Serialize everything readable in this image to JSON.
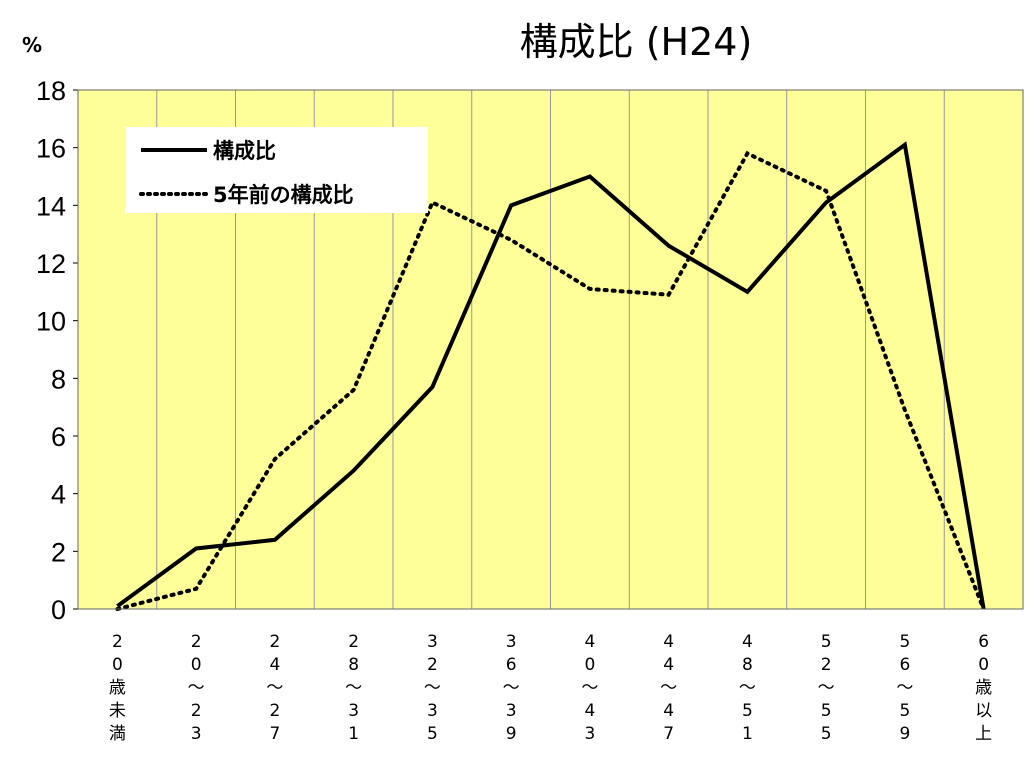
{
  "chart_data": {
    "type": "line",
    "title": "構成比 (H24)",
    "unit_label": "%",
    "ylim": [
      0,
      18
    ],
    "yticks": [
      "0",
      "2",
      "4",
      "6",
      "8",
      "10",
      "12",
      "14",
      "16",
      "18"
    ],
    "categories": [
      [
        "2",
        "0",
        "歳",
        "未",
        "満"
      ],
      [
        "2",
        "0",
        "〜",
        "2",
        "3"
      ],
      [
        "2",
        "4",
        "〜",
        "2",
        "7"
      ],
      [
        "2",
        "8",
        "〜",
        "3",
        "1"
      ],
      [
        "3",
        "2",
        "〜",
        "3",
        "5"
      ],
      [
        "3",
        "6",
        "〜",
        "3",
        "9"
      ],
      [
        "4",
        "0",
        "〜",
        "4",
        "3"
      ],
      [
        "4",
        "4",
        "〜",
        "4",
        "7"
      ],
      [
        "4",
        "8",
        "〜",
        "5",
        "1"
      ],
      [
        "5",
        "2",
        "〜",
        "5",
        "5"
      ],
      [
        "5",
        "6",
        "〜",
        "5",
        "9"
      ],
      [
        "6",
        "0",
        "歳",
        "以",
        "上"
      ]
    ],
    "series": [
      {
        "name": "構成比",
        "style": "solid",
        "values": [
          0.1,
          2.1,
          2.4,
          4.8,
          7.7,
          14.0,
          15.0,
          12.6,
          11.0,
          14.1,
          16.1,
          0.0
        ]
      },
      {
        "name": "5年前の構成比",
        "style": "dotted",
        "values": [
          0.0,
          0.7,
          5.2,
          7.6,
          14.1,
          12.8,
          11.1,
          10.9,
          15.8,
          14.5,
          6.9,
          0.0
        ]
      }
    ],
    "grid": true,
    "legend_position": "top-left",
    "colors": {
      "plot_background": "#FFFF99",
      "line": "#000000",
      "gridline": "#999999"
    }
  }
}
